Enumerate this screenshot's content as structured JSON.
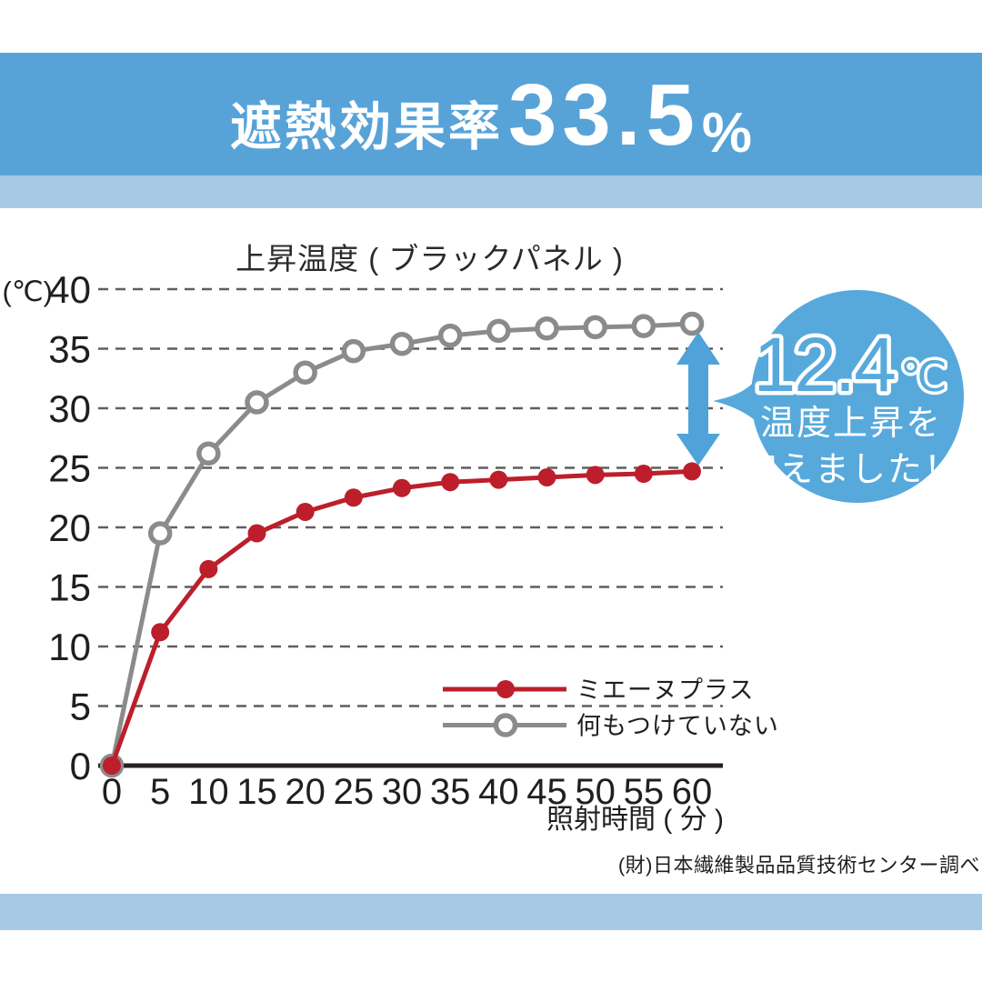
{
  "banner": {
    "label": "遮熱効果率",
    "value": "33.5",
    "unit": "%"
  },
  "chart_title": "上昇温度 ( ブラックパネル )",
  "y_unit": "(℃)",
  "x_label": "照射時間 ( 分 )",
  "source_note": "(財)日本繊維製品品質技術センター調べ",
  "callout": {
    "value": "12.4",
    "unit": "℃",
    "line1": "温度上昇を",
    "line2": "抑えました！"
  },
  "colors": {
    "banner_blue": "#57a3d8",
    "strip_blue": "#a6cae3",
    "bubble_blue": "#57a9dc",
    "arrow_blue": "#4fa3d8",
    "series_red": "#bc1f2b",
    "series_gray": "#8b8b8b"
  },
  "chart_data": {
    "type": "line",
    "title": "上昇温度 ( ブラックパネル )",
    "xlabel": "照射時間 ( 分 )",
    "ylabel": "(℃)",
    "x": [
      0,
      5,
      10,
      15,
      20,
      25,
      30,
      35,
      40,
      45,
      50,
      55,
      60
    ],
    "xticks": [
      0,
      5,
      10,
      15,
      20,
      25,
      30,
      35,
      40,
      45,
      50,
      55,
      60
    ],
    "yticks": [
      0,
      5,
      10,
      15,
      20,
      25,
      30,
      35,
      40
    ],
    "ylim": [
      0,
      40
    ],
    "grid": "horizontal-dashed",
    "legend_position": "inside-lower-right",
    "series": [
      {
        "name": "ミエーヌプラス",
        "color": "#bc1f2b",
        "marker": "filled-circle",
        "values": [
          0,
          11.2,
          16.5,
          19.5,
          21.3,
          22.5,
          23.3,
          23.8,
          24.0,
          24.2,
          24.4,
          24.5,
          24.7
        ]
      },
      {
        "name": "何もつけていない",
        "color": "#8b8b8b",
        "marker": "open-circle",
        "values": [
          0,
          19.5,
          26.2,
          30.5,
          33.0,
          34.8,
          35.4,
          36.1,
          36.5,
          36.7,
          36.8,
          36.9,
          37.1
        ]
      }
    ],
    "annotation": {
      "difference_at_60min": "12.4℃"
    }
  }
}
